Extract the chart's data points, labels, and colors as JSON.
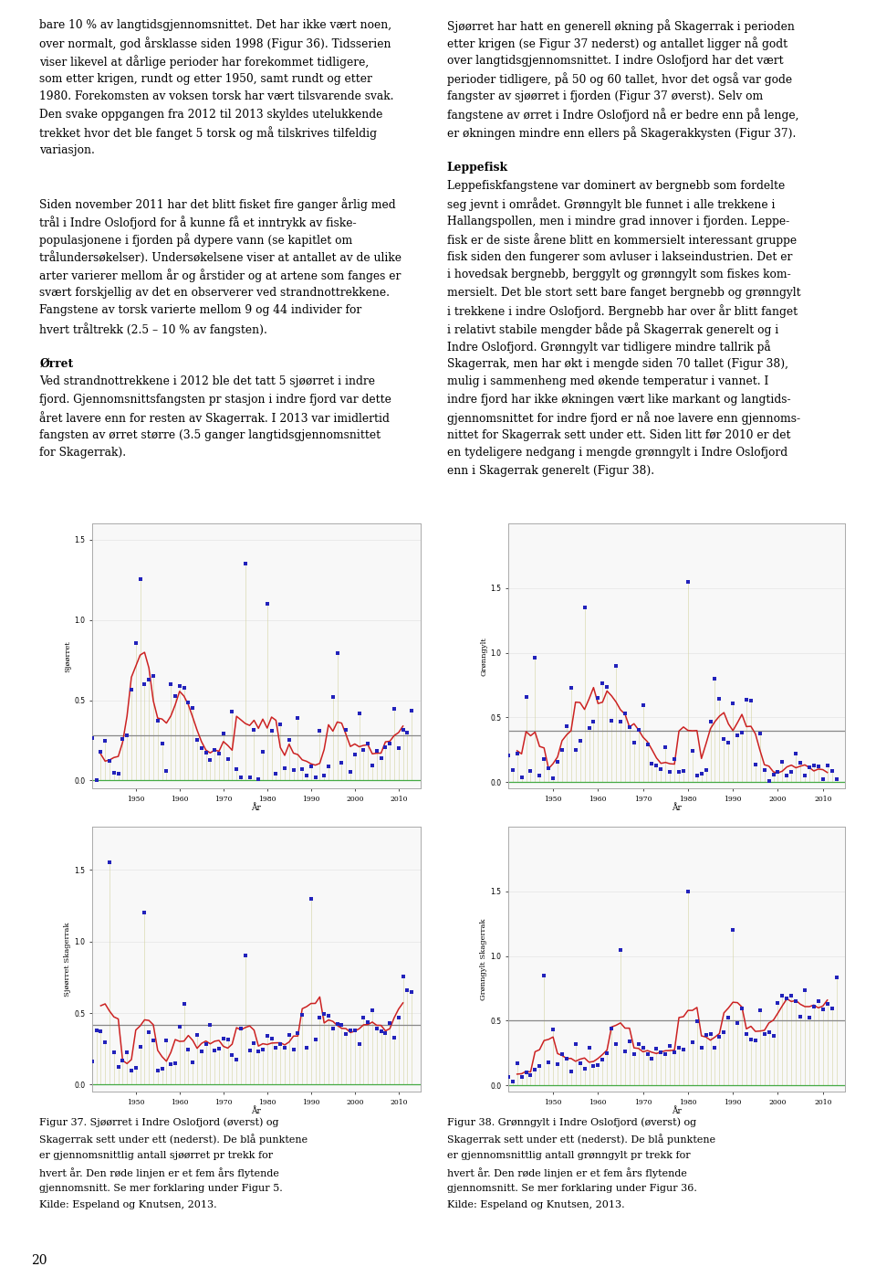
{
  "page_background": "#ffffff",
  "text_color": "#000000",
  "page_number": "20",
  "left_column_lines": [
    "bare 10 % av langtidsgjennomsnittet. Det har ikke vært noen,",
    "over normalt, god årsklasse siden 1998 (Figur 36). Tidsserien",
    "viser likevel at dårlige perioder har forekommet tidligere,",
    "som etter krigen, rundt og etter 1950, samt rundt og etter",
    "1980. Forekomsten av voksen torsk har vært tilsvarende svak.",
    "Den svake oppgangen fra 2012 til 2013 skyldes utelukkende",
    "trekket hvor det ble fanget 5 torsk og må tilskrives tilfeldig",
    "variasjon.",
    "",
    "",
    "Siden november 2011 har det blitt fisket fire ganger årlig med",
    "trål i Indre Oslofjord for å kunne få et inntrykk av fiske-",
    "populasjonene i fjorden på dypere vann (se kapitlet om",
    "trålundersøkelser). Undersøkelsene viser at antallet av de ulike",
    "arter varierer mellom år og årstider og at artene som fanges er",
    "svært forskjellig av det en observerer ved strandnottrekkene.",
    "Fangstene av torsk varierte mellom 9 og 44 individer for",
    "hvert tråltrekk (2.5 – 10 % av fangsten).",
    "",
    "Ørret",
    "Ved strandnottrekkene i 2012 ble det tatt 5 sjøørret i indre",
    "fjord. Gjennomsnittsfangsten pr stasjon i indre fjord var dette",
    "året lavere enn for resten av Skagerrak. I 2013 var imidlertid",
    "fangsten av ørret større (3.5 ganger langtidsgjennomsnittet",
    "for Skagerrak)."
  ],
  "left_bold_lines": [
    19
  ],
  "right_column_lines": [
    "Sjøørret har hatt en generell økning på Skagerrak i perioden",
    "etter krigen (se Figur 37 nederst) og antallet ligger nå godt",
    "over langtidsgjennomsnittet. I indre Oslofjord har det vært",
    "perioder tidligere, på 50 og 60 tallet, hvor det også var gode",
    "fangster av sjøørret i fjorden (Figur 37 øverst). Selv om",
    "fangstene av ørret i Indre Oslofjord nå er bedre enn på lenge,",
    "er økningen mindre enn ellers på Skagerakkysten (Figur 37).",
    "",
    "Leppefisk",
    "Leppefiskfangstene var dominert av bergnebb som fordelte",
    "seg jevnt i området. Grønngylt ble funnet i alle trekkene i",
    "Hallangspollen, men i mindre grad innover i fjorden. Leppe-",
    "fisk er de siste årene blitt en kommersielt interessant gruppe",
    "fisk siden den fungerer som avluser i lakseindustrien. Det er",
    "i hovedsak bergnebb, berggylt og grønngylt som fiskes kom-",
    "mersielt. Det ble stort sett bare fanget bergnebb og grønngylt",
    "i trekkene i indre Oslofjord. Bergnebb har over år blitt fanget",
    "i relativt stabile mengder både på Skagerrak generelt og i",
    "Indre Oslofjord. Grønngylt var tidligere mindre tallrik på",
    "Skagerrak, men har økt i mengde siden 70 tallet (Figur 38),",
    "mulig i sammenheng med økende temperatur i vannet. I",
    "indre fjord har ikke økningen vært like markant og langtids-",
    "gjennomsnittet for indre fjord er nå noe lavere enn gjennoms-",
    "nittet for Skagerrak sett under ett. Siden litt før 2010 er det",
    "en tydeligere nedgang i mengde grønngylt i Indre Oslofjord",
    "enn i Skagerrak generelt (Figur 38)."
  ],
  "right_bold_lines": [
    8
  ],
  "fig37_caption_bold": "Figur 37.",
  "fig37_caption": " Sjøørret i Indre Oslofjord (øverst) og Skagerrak sett under ett (nederst). De blå punktene er gjennomsnittlig antall sjøørret pr trekk for hvert år. Den røde linjen er et fem års flytende gjennomsnitt. Se mer forklaring under Figur 5. Kilde: Espeland og Knutsen, 2013.",
  "fig38_caption_bold": "Figur 38.",
  "fig38_caption": " Grønngylt i Indre Oslofjord (øverst) og Skagerrak sett under ett (nederst). De blå punktene er gjennomsnittlig antall grønngylt pr trekk for hvert år. Den røde linjen er et fem års flytende gjennomsnitt. Se mer forklaring under Figur 36. Kilde: Espeland og Knutsen, 2013.",
  "dot_color": "#2222bb",
  "line_color": "#cc2222",
  "mean_line_color": "#888888",
  "zero_line_color": "#44aa44",
  "chart_frame_color": "#aaaaaa",
  "chart_bg": "#f8f8f8",
  "text_fontsize": 8.8,
  "caption_fontsize": 8.0
}
